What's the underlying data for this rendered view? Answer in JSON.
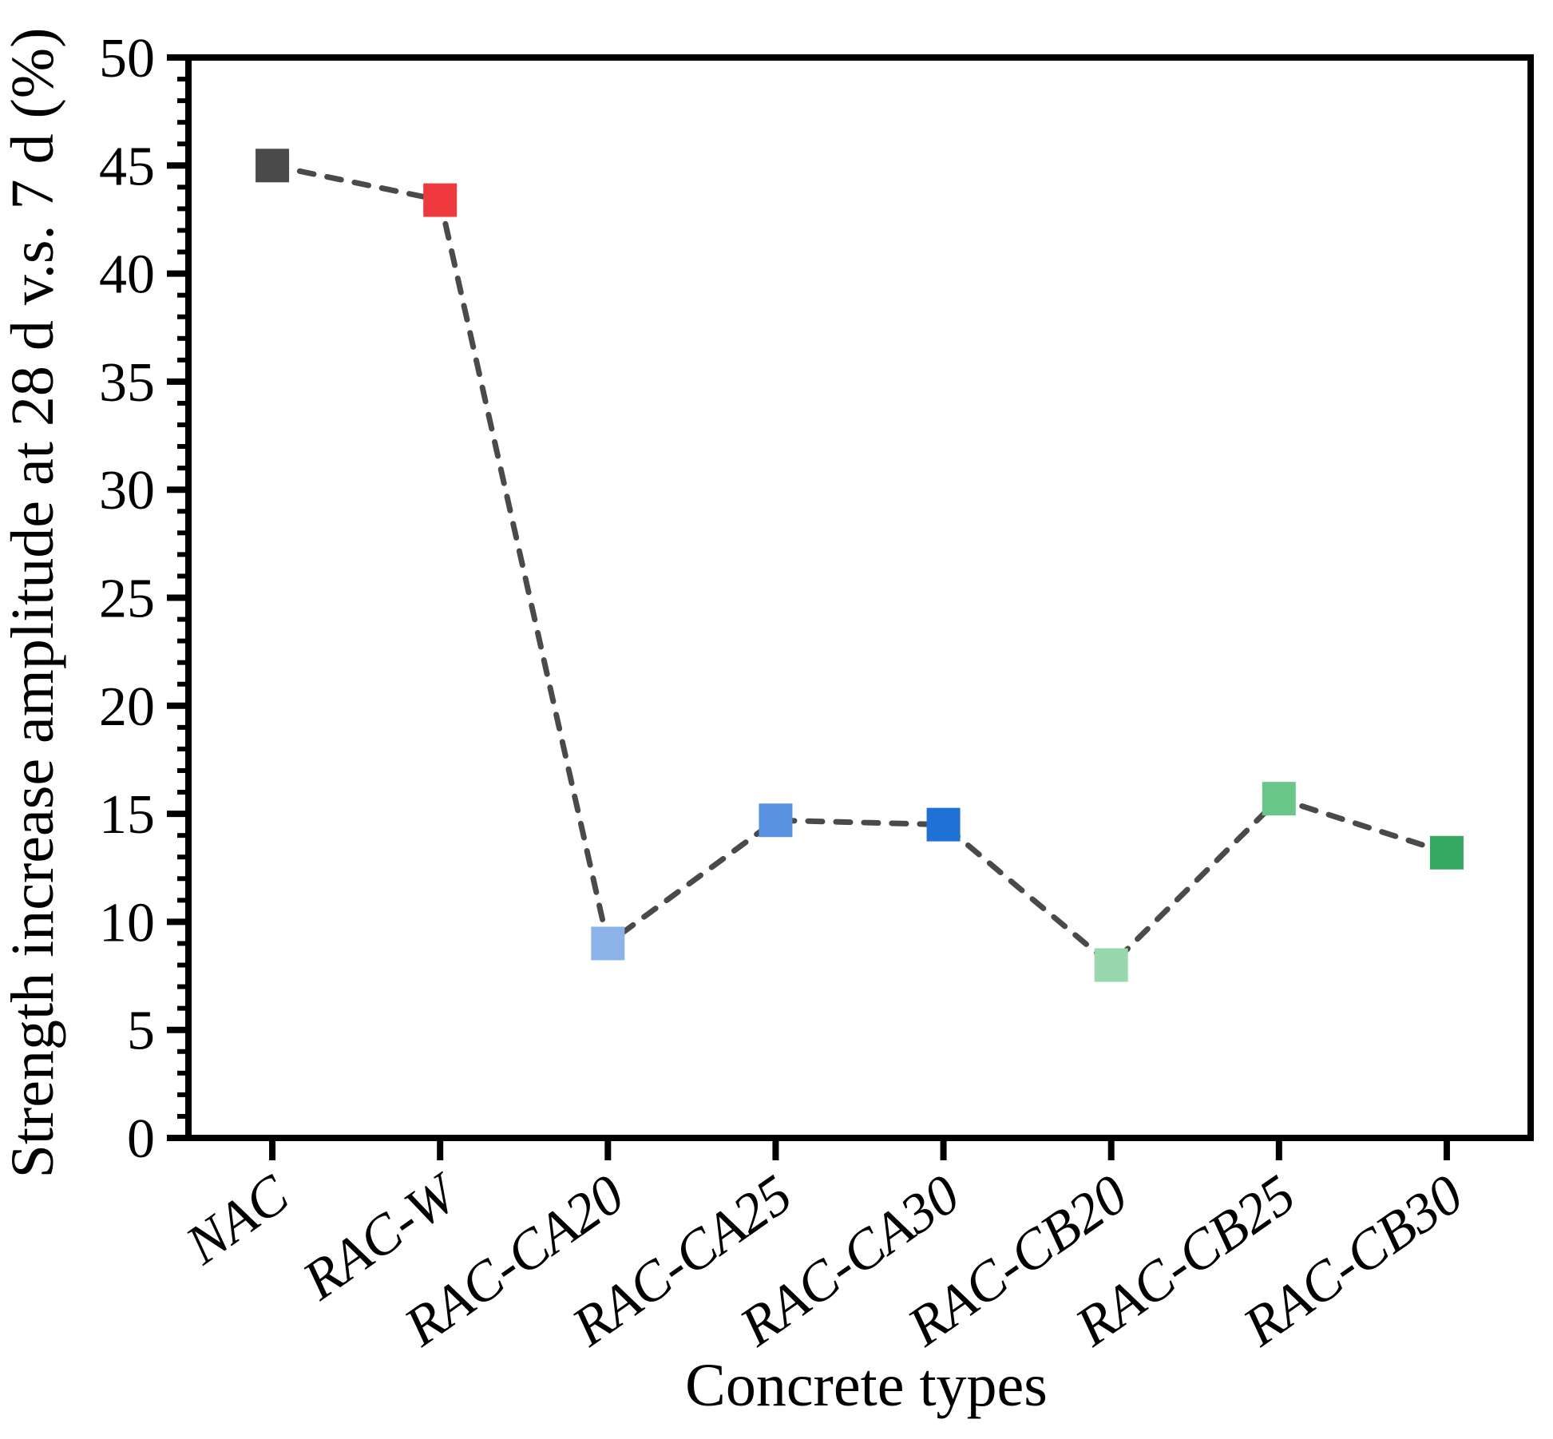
{
  "figure": {
    "background": "#ffffff",
    "frame_color": "#000000"
  },
  "chart_data": {
    "type": "line",
    "title": "",
    "xlabel": "Concrete types",
    "ylabel": "Strength increase amplitude at 28 d v.s. 7 d (%)",
    "categories": [
      "NAC",
      "RAC-W",
      "RAC-CA20",
      "RAC-CA25",
      "RAC-CA30",
      "RAC-CB20",
      "RAC-CB25",
      "RAC-CB30"
    ],
    "values": [
      45.0,
      43.4,
      9.0,
      14.7,
      14.5,
      8.0,
      15.7,
      13.2
    ],
    "marker": "square",
    "marker_colors": [
      "#4a4a4a",
      "#ee3a3e",
      "#8cb2ea",
      "#5a92e2",
      "#2071d6",
      "#98d8ac",
      "#68c788",
      "#36aa63"
    ],
    "line_style": "dashed",
    "line_color": "#4a4a4a",
    "ylim": [
      0,
      50
    ],
    "y_major_ticks": [
      0,
      5,
      10,
      15,
      20,
      25,
      30,
      35,
      40,
      45,
      50
    ],
    "y_minor_step": 1,
    "grid": false,
    "legend": false,
    "x_tick_rotation_deg": -35
  }
}
